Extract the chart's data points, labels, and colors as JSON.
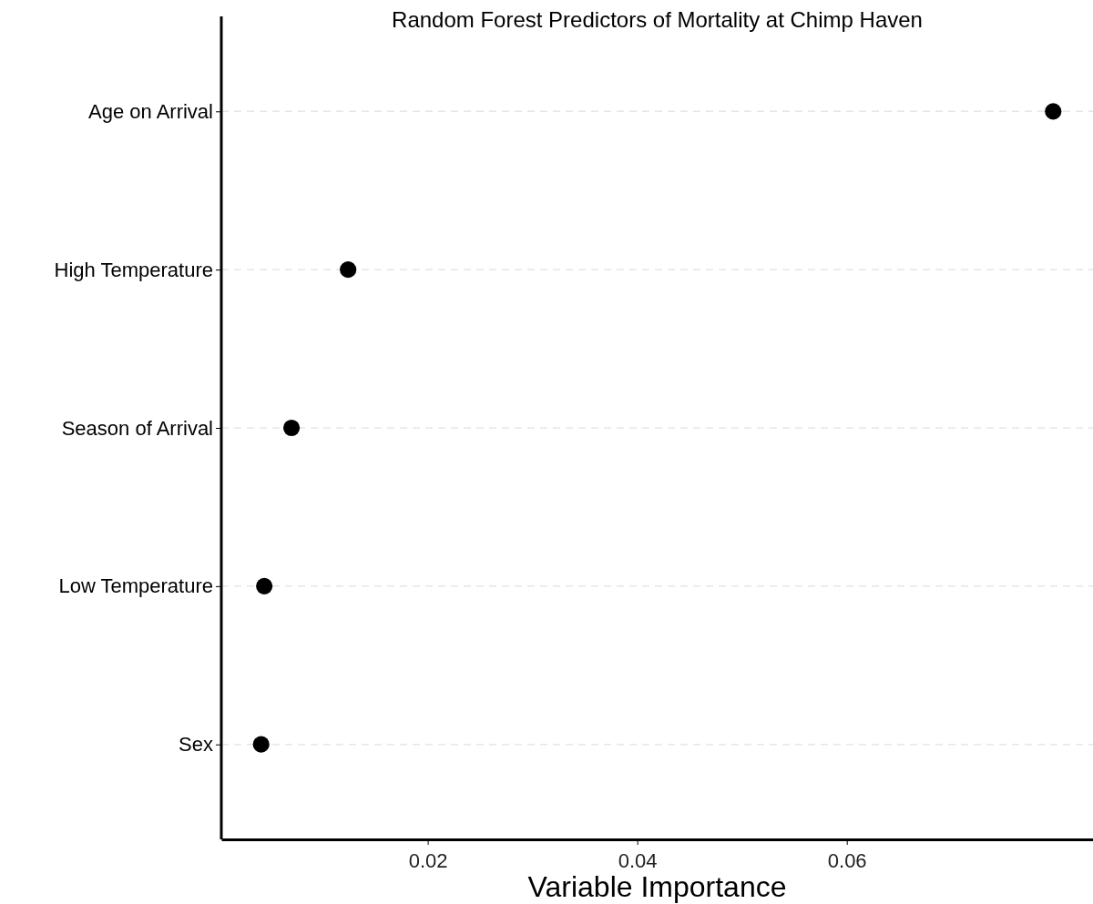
{
  "chart_data": {
    "type": "scatter",
    "title": "Random Forest Predictors of Mortality at Chimp Haven",
    "xlabel": "Variable Importance",
    "orientation": "horizontal",
    "categories": [
      "Age on Arrival",
      "High Temperature",
      "Season of Arrival",
      "Low Temperature",
      "Sex"
    ],
    "values": [
      0.0797,
      0.0124,
      0.007,
      0.0044,
      0.0041
    ],
    "color": "#000000",
    "marker": "circle",
    "xlim": [
      0.0003,
      0.0835
    ],
    "xticks": [
      0.02,
      0.04,
      0.06
    ],
    "grid": "y"
  }
}
